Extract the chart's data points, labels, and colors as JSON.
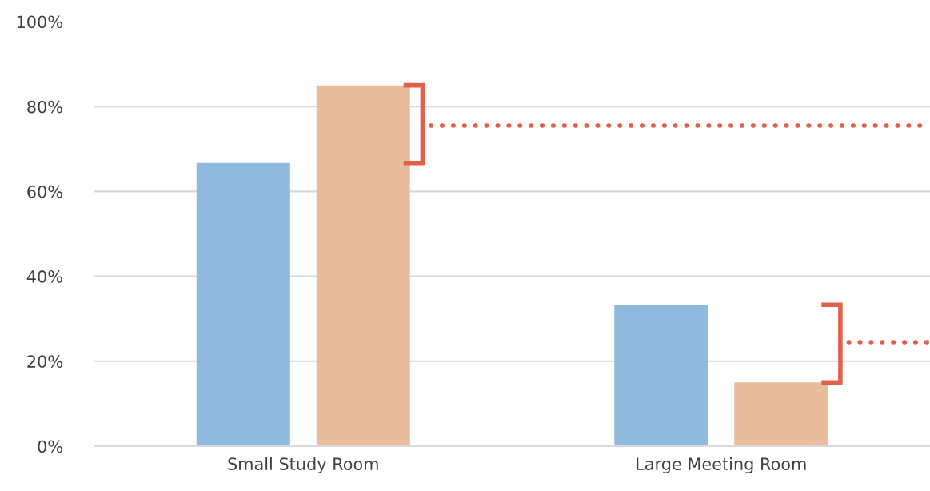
{
  "chart_data": {
    "type": "bar",
    "categories": [
      "Small Study Room",
      "Large Meeting Room"
    ],
    "series": [
      {
        "color": "#8fbadd",
        "values": [
          66.7,
          33.3
        ]
      },
      {
        "color": "#e7bd9d",
        "values": [
          85,
          15
        ]
      }
    ],
    "ylim": [
      0,
      100
    ],
    "yticks": [
      {
        "value": 0,
        "label": "0%"
      },
      {
        "value": 20,
        "label": "20%"
      },
      {
        "value": 40,
        "label": "40%"
      },
      {
        "value": 60,
        "label": "60%"
      },
      {
        "value": 80,
        "label": "80%"
      },
      {
        "value": 100,
        "label": "100%"
      }
    ],
    "grid": "y",
    "ref_lines": [
      {
        "axis": "y",
        "value": 75.5,
        "color": "#e0604a",
        "line_style": "dotted"
      },
      {
        "axis": "y",
        "value": 24.5,
        "color": "#e0604a",
        "line_style": "dotted"
      }
    ]
  }
}
